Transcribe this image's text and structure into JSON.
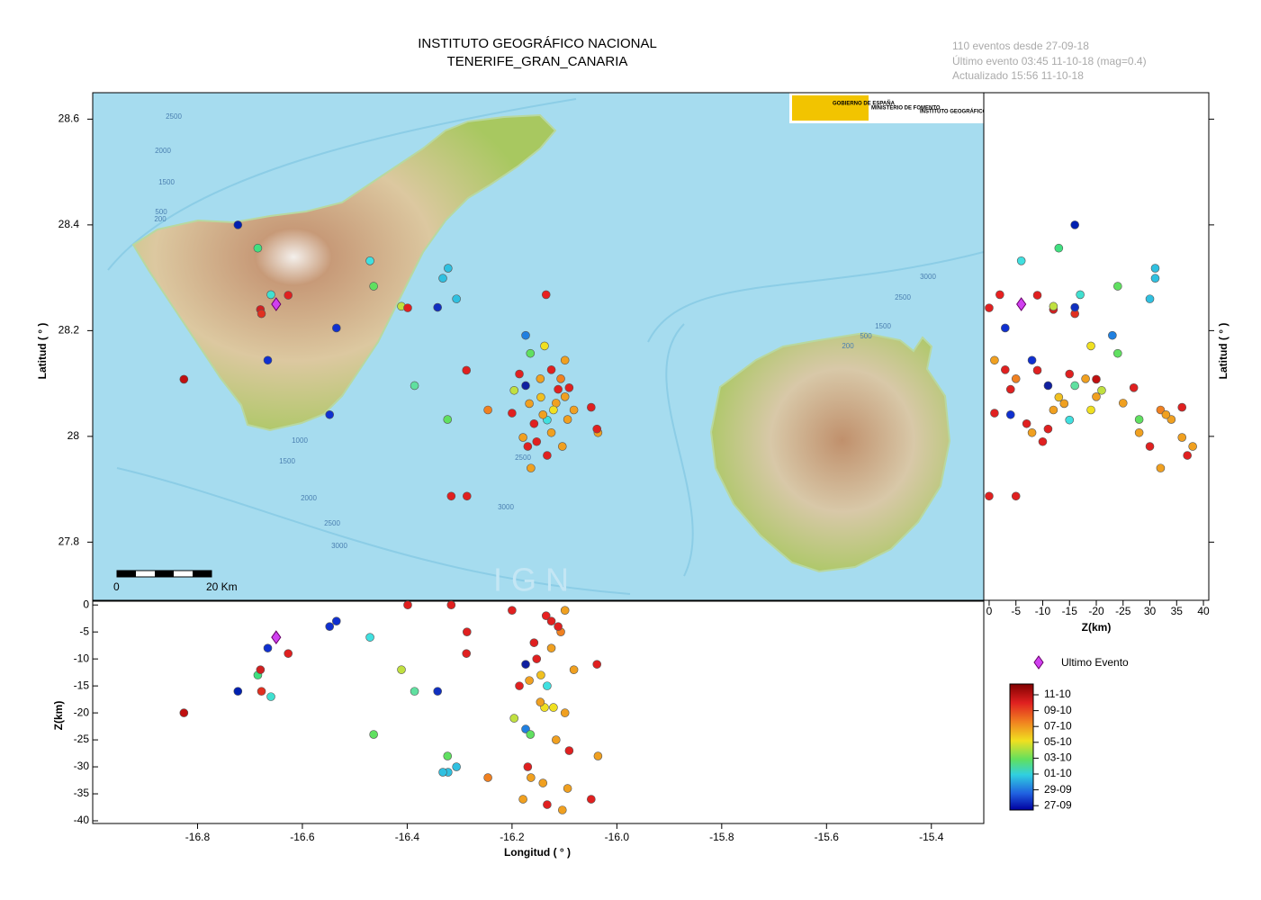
{
  "header": {
    "title": "INSTITUTO GEOGRÁFICO NACIONAL",
    "subtitle": "TENERIFE_GRAN_CANARIA",
    "info": [
      "110 eventos desde 27-09-18",
      "Último evento 03:45 11-10-18  (mag=0.4)",
      "Actualizado   15:56  11-10-18"
    ]
  },
  "map": {
    "logos": [
      "GOBIERNO DE ESPAÑA",
      "MINISTERIO DE FOMENTO",
      "INSTITUTO GEOGRÁFICO NACIONAL"
    ],
    "scale": [
      "0",
      "20 Km"
    ],
    "watermark": "I G N",
    "contour_labels": [
      "2500",
      "2000",
      "1500",
      "500",
      "200",
      "1000",
      "1500",
      "2000",
      "2500",
      "3000",
      "3000",
      "2500",
      "3000",
      "2500",
      "1500",
      "500",
      "200"
    ]
  },
  "chart_data": {
    "type": "scatter",
    "xlabel": "Longitud ( ° )",
    "ylabel": "Latitud ( ° )",
    "zlabel": "Z(km)",
    "xlim": [
      -17,
      -15.3
    ],
    "xticks": [
      -16.8,
      -16.6,
      -16.4,
      -16.2,
      {
        "value": -16,
        "label": "-16.0"
      },
      -15.8,
      -15.6,
      -15.4
    ],
    "ylim": [
      27.69,
      28.65
    ],
    "yticks": [
      28.6,
      28.4,
      28.2,
      28,
      27.8
    ],
    "depthlim": [
      -40.5,
      0.7
    ],
    "depthticks": [
      0,
      -5,
      -10,
      -15,
      -20,
      -25,
      -30,
      -35,
      -40
    ],
    "zlim": [
      -1,
      41
    ],
    "zticks": [
      0,
      {
        "value": 5,
        "label": "-5"
      },
      {
        "value": 10,
        "label": "-10"
      },
      {
        "value": 15,
        "label": "-15"
      },
      {
        "value": 20,
        "label": "-20"
      },
      {
        "value": 25,
        "label": "-25"
      },
      30,
      35,
      40
    ],
    "events": {
      "lon": [
        -16.723,
        -16.685,
        -16.826,
        -16.666,
        -16.68,
        -16.678,
        -16.66,
        -16.627,
        -16.535,
        -16.548,
        -16.471,
        -16.464,
        -16.411,
        -16.399,
        -16.386,
        -16.342,
        -16.322,
        -16.332,
        -16.306,
        -16.323,
        -16.287,
        -16.316,
        -16.286,
        -16.246,
        -16.135,
        -16.174,
        -16.174,
        -16.165,
        -16.138,
        -16.186,
        -16.196,
        -16.2,
        -16.133,
        -16.164,
        -16.049,
        -16.036,
        -16.038,
        -16.125,
        -16.107,
        -16.099,
        -16.116,
        -16.145,
        -16.158,
        -16.153,
        -16.17,
        -16.125,
        -16.091,
        -16.099,
        -16.094,
        -16.146,
        -16.112,
        -16.082,
        -16.104,
        -16.133,
        -16.121,
        -16.167,
        -16.141,
        -16.179
      ],
      "lat": [
        28.4,
        28.356,
        28.108,
        28.144,
        28.24,
        28.232,
        28.268,
        28.267,
        28.205,
        28.041,
        28.332,
        28.284,
        28.246,
        28.243,
        28.096,
        28.244,
        28.318,
        28.299,
        28.26,
        28.032,
        28.125,
        27.887,
        27.887,
        28.05,
        28.268,
        28.191,
        28.096,
        28.157,
        28.171,
        28.118,
        28.087,
        28.044,
        28.031,
        27.94,
        28.055,
        28.007,
        28.014,
        28.126,
        28.109,
        28.075,
        28.063,
        28.074,
        28.024,
        27.99,
        27.981,
        28.007,
        28.092,
        28.144,
        28.032,
        28.109,
        28.089,
        28.05,
        27.981,
        27.964,
        28.05,
        28.062,
        28.041,
        27.998
      ],
      "depth": [
        -16,
        -13,
        -20,
        -8,
        -12,
        -16,
        -17,
        -9,
        -3,
        -4,
        -6,
        -24,
        -12,
        0,
        -16,
        -16,
        -31,
        -31,
        -30,
        -28,
        -9,
        0,
        -5,
        -32,
        -2,
        -23,
        -11,
        -24,
        -19,
        -15,
        -21,
        -1,
        -15,
        -32,
        -36,
        -28,
        -11,
        -3,
        -5,
        -20,
        -25,
        -13,
        -7,
        -10,
        -30,
        -8,
        -27,
        -1,
        -34,
        -18,
        -4,
        -12,
        -38,
        -37,
        -19,
        -14,
        -33,
        -36
      ],
      "colors": [
        "#0020b0",
        "#40e080",
        "#c01010",
        "#1030d0",
        "#d02020",
        "#e03020",
        "#40e0d0",
        "#e02020",
        "#1030d0",
        "#1030d0",
        "#40e0e0",
        "#60e060",
        "#c0e040",
        "#e02020",
        "#60e0a0",
        "#1030c0",
        "#30c0e0",
        "#30c0e0",
        "#30c0e0",
        "#60e060",
        "#e02020",
        "#e02020",
        "#e02020",
        "#f08020",
        "#e82020",
        "#2080e0",
        "#1020a0",
        "#60e060",
        "#f0e020",
        "#e02020",
        "#c0e040",
        "#e02020",
        "#40e0e0",
        "#f0a020",
        "#e02020",
        "#f0a020",
        "#e02020",
        "#e02020",
        "#f08020",
        "#f0a020",
        "#f0a020",
        "#f0c020",
        "#e02020",
        "#e02020",
        "#e02020",
        "#f0a020",
        "#e02020",
        "#f0a020",
        "#f0a020",
        "#f0a020",
        "#e02020",
        "#f0a020",
        "#f0a020",
        "#e02020",
        "#f0e020",
        "#f0a020",
        "#f0a020",
        "#f0a020"
      ]
    },
    "last_event": {
      "lon": -16.65,
      "lat": 28.25,
      "depth": -6,
      "color": "#d040f0"
    },
    "legend": "Ultimo Evento",
    "colorbar": [
      "11-10",
      "09-10",
      "07-10",
      "05-10",
      "03-10",
      "01-10",
      "29-09",
      "27-09"
    ]
  }
}
